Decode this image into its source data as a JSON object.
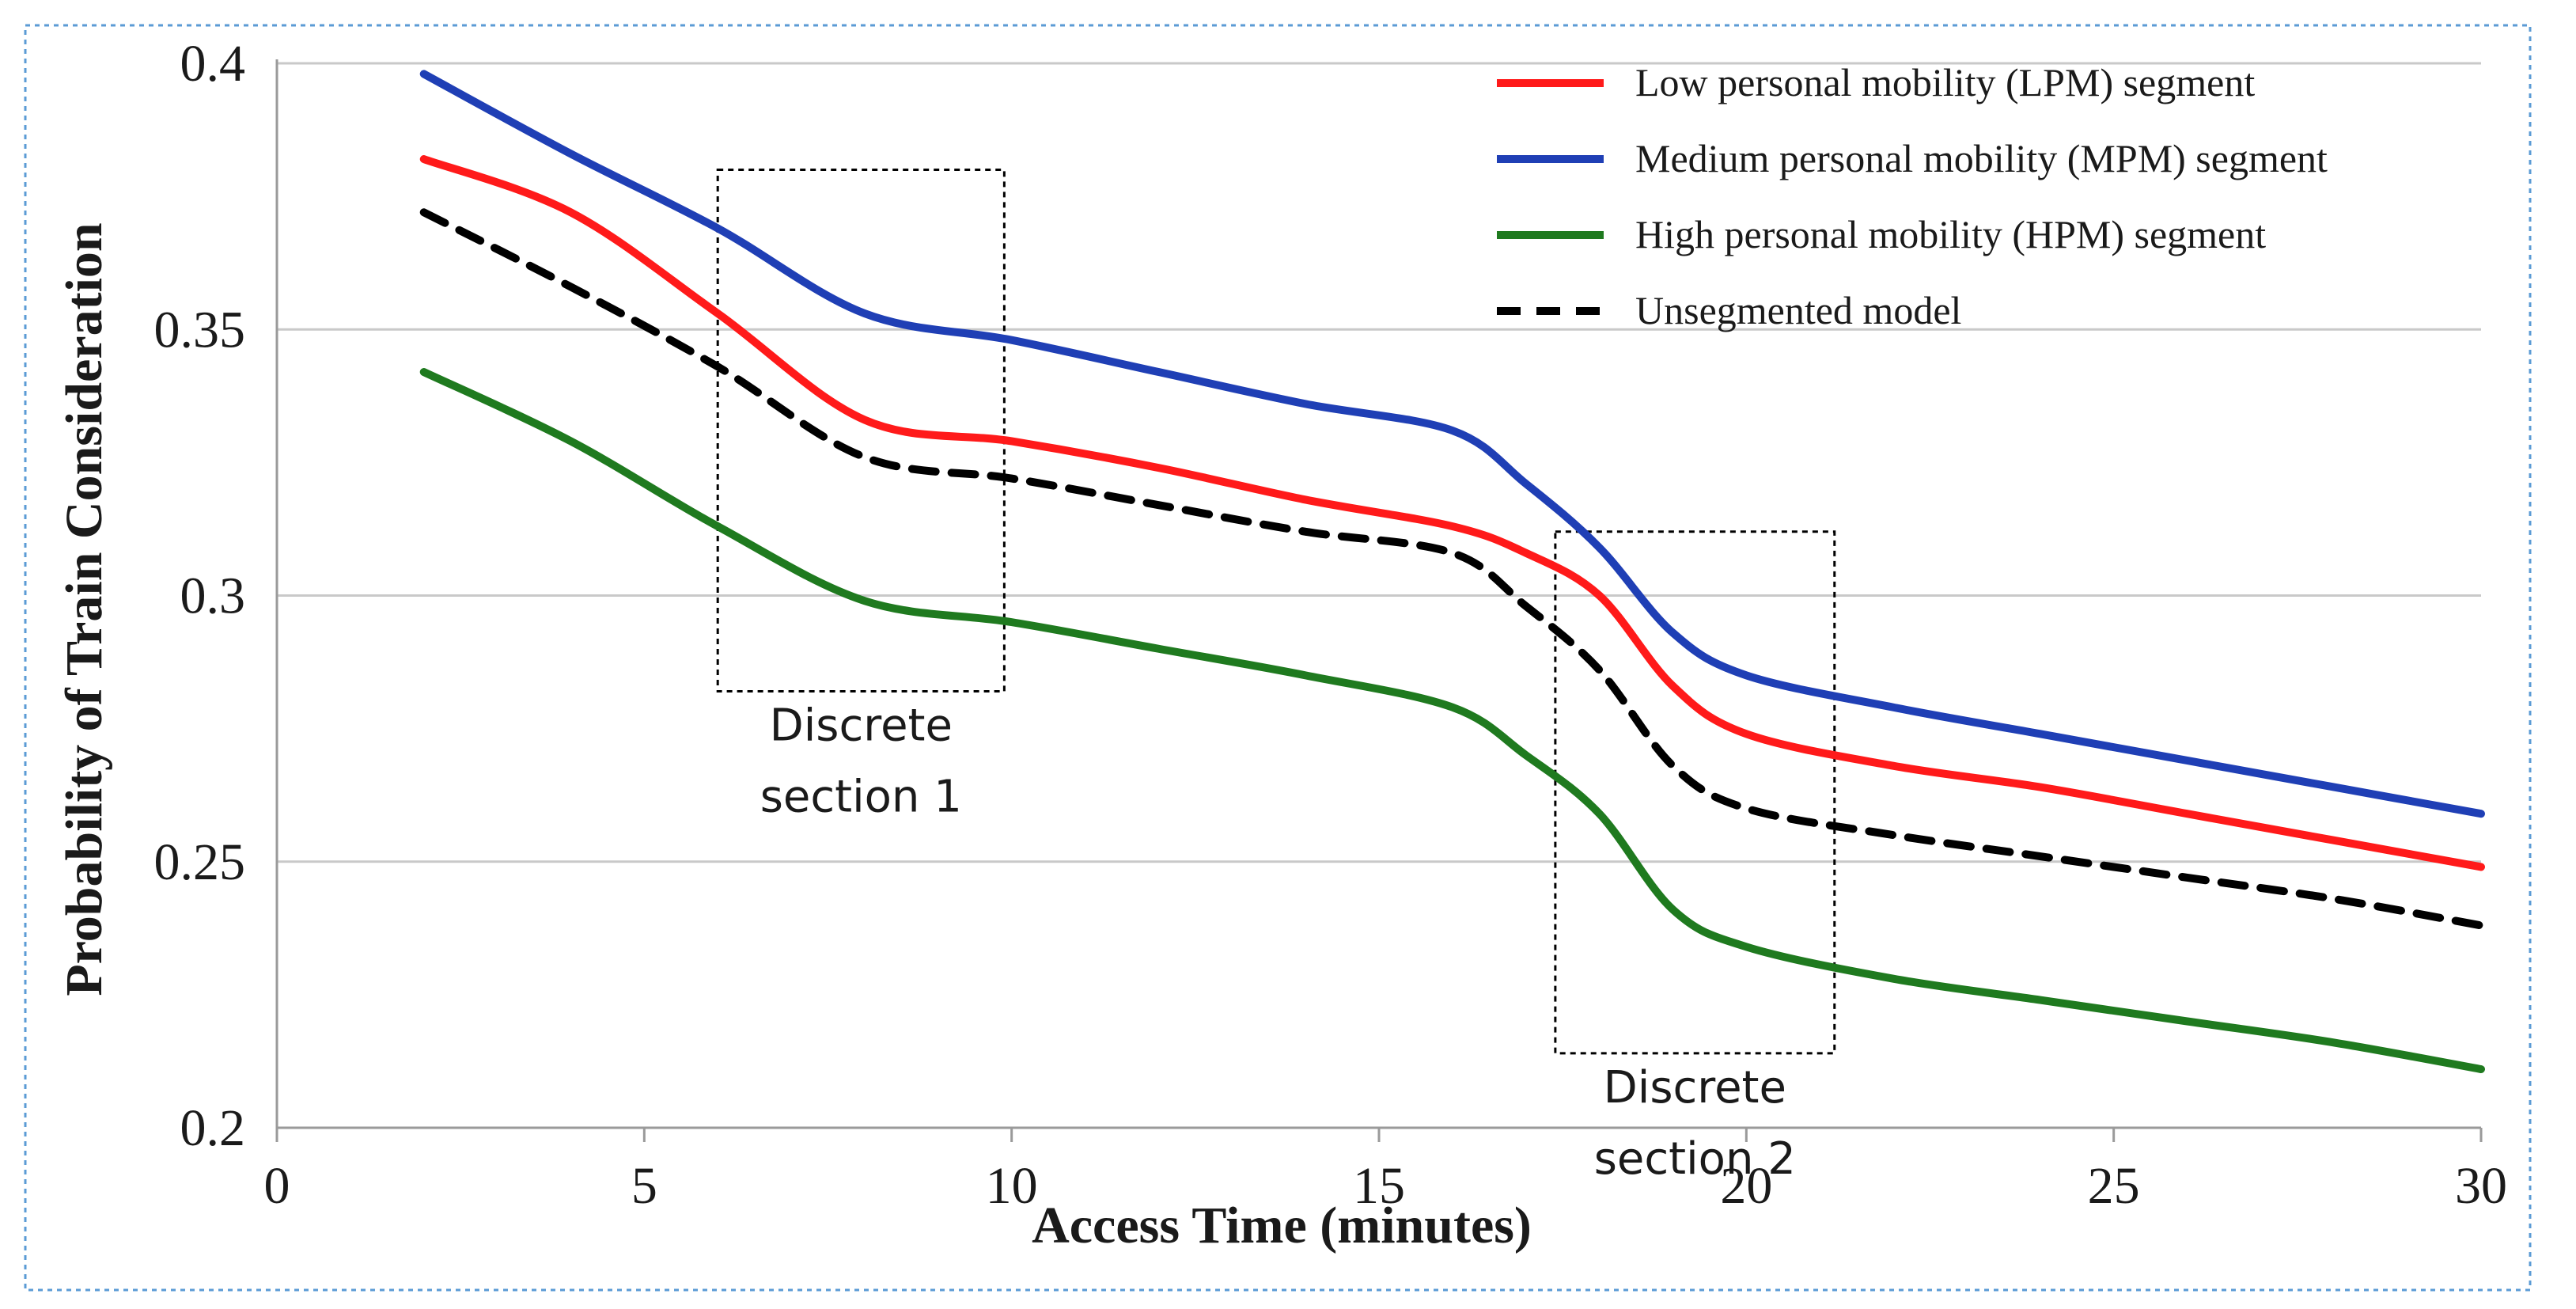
{
  "chart_data": {
    "type": "line",
    "title": "",
    "xlabel": "Access Time (minutes)",
    "ylabel": "Probability of Train Consideration",
    "xlim": [
      0,
      30
    ],
    "ylim": [
      0.2,
      0.4
    ],
    "xticks": [
      0,
      5,
      10,
      15,
      20,
      25,
      30
    ],
    "xtick_labels": [
      "0",
      "5",
      "10",
      "15",
      "20",
      "25",
      "30"
    ],
    "yticks": [
      0.2,
      0.25,
      0.3,
      0.35,
      0.4
    ],
    "ytick_labels": [
      "0.2",
      "0.25",
      "0.3",
      "0.35",
      "0.4"
    ],
    "grid": true,
    "legend_position": "top-right",
    "series": [
      {
        "name": "Low personal mobility (LPM) segment",
        "color": "#ff1a1a",
        "dash": "solid",
        "x": [
          2,
          4,
          6,
          8,
          10,
          12,
          14,
          16,
          17,
          18,
          19,
          20,
          22,
          24,
          26,
          28,
          30
        ],
        "values": [
          0.382,
          0.372,
          0.353,
          0.333,
          0.329,
          0.324,
          0.318,
          0.313,
          0.308,
          0.3,
          0.283,
          0.274,
          0.268,
          0.264,
          0.259,
          0.254,
          0.249
        ]
      },
      {
        "name": "Medium personal mobility (MPM) segment",
        "color": "#1f3fb5",
        "dash": "solid",
        "x": [
          2,
          4,
          6,
          8,
          10,
          12,
          14,
          16,
          17,
          18,
          19,
          20,
          22,
          24,
          26,
          28,
          30
        ],
        "values": [
          0.398,
          0.383,
          0.369,
          0.353,
          0.348,
          0.342,
          0.336,
          0.331,
          0.321,
          0.309,
          0.293,
          0.285,
          0.279,
          0.274,
          0.269,
          0.264,
          0.259
        ]
      },
      {
        "name": "High personal mobility (HPM) segment",
        "color": "#1f7a1f",
        "dash": "solid",
        "x": [
          2,
          4,
          6,
          8,
          10,
          12,
          14,
          16,
          17,
          18,
          19,
          20,
          22,
          24,
          26,
          28,
          30
        ],
        "values": [
          0.342,
          0.329,
          0.313,
          0.299,
          0.295,
          0.29,
          0.285,
          0.279,
          0.27,
          0.259,
          0.241,
          0.234,
          0.228,
          0.224,
          0.22,
          0.216,
          0.211
        ]
      },
      {
        "name": "Unsegmented model",
        "color": "#000000",
        "dash": "dashed",
        "x": [
          2,
          4,
          6,
          8,
          10,
          12,
          14,
          16,
          17,
          18,
          19,
          20,
          22,
          24,
          26,
          28,
          30
        ],
        "values": [
          0.372,
          0.358,
          0.343,
          0.326,
          0.322,
          0.317,
          0.312,
          0.308,
          0.298,
          0.286,
          0.268,
          0.26,
          0.255,
          0.251,
          0.247,
          0.243,
          0.238
        ]
      }
    ],
    "annotations": [
      {
        "label_line1": "Discrete",
        "label_line2": "section 1",
        "x_range": [
          6,
          9.9
        ],
        "y_range": [
          0.282,
          0.38
        ]
      },
      {
        "label_line1": "Discrete",
        "label_line2": "section 2",
        "x_range": [
          17.4,
          21.2
        ],
        "y_range": [
          0.214,
          0.312
        ]
      }
    ]
  }
}
